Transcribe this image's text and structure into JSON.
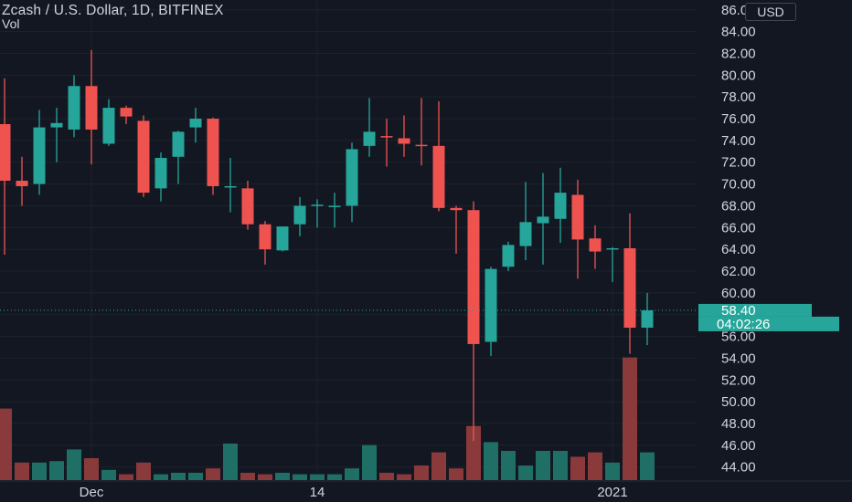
{
  "header": {
    "title": "Zcash / U.S. Dollar, 1D, BITFINEX",
    "volume_label": "Vol"
  },
  "currency_button": "USD",
  "colors": {
    "background": "#131722",
    "up": "#26a69a",
    "down": "#ef5350",
    "vol_up": "#1f6f66",
    "vol_down": "#8b3a3c",
    "grid": "#1e222d",
    "axis_text": "#d1d4dc"
  },
  "chart_data": {
    "type": "candlestick",
    "title": "Zcash / U.S. Dollar, 1D, BITFINEX",
    "ylim": [
      42.8,
      86.4
    ],
    "y_ticks": [
      "44.00",
      "46.00",
      "48.00",
      "50.00",
      "52.00",
      "54.00",
      "56.00",
      "58.00",
      "60.00",
      "62.00",
      "64.00",
      "66.00",
      "68.00",
      "70.00",
      "72.00",
      "74.00",
      "76.00",
      "78.00",
      "80.00",
      "82.00",
      "84.00",
      "86.00"
    ],
    "x_ticks": [
      {
        "label": "Dec",
        "index": 5
      },
      {
        "label": "14",
        "index": 18
      },
      {
        "label": "2021",
        "index": 35
      }
    ],
    "last_price": "58.40",
    "countdown": "04:02:26",
    "grid": true,
    "candles": [
      {
        "o": 75.5,
        "h": 79.7,
        "l": 63.5,
        "c": 70.3
      },
      {
        "o": 70.3,
        "h": 72.5,
        "l": 68.0,
        "c": 69.8
      },
      {
        "o": 70.0,
        "h": 76.8,
        "l": 69.0,
        "c": 75.2
      },
      {
        "o": 75.2,
        "h": 77.0,
        "l": 72.0,
        "c": 75.6
      },
      {
        "o": 75.0,
        "h": 80.0,
        "l": 74.3,
        "c": 79.0
      },
      {
        "o": 79.0,
        "h": 82.3,
        "l": 71.8,
        "c": 75.0
      },
      {
        "o": 73.7,
        "h": 77.8,
        "l": 73.5,
        "c": 77.0
      },
      {
        "o": 77.0,
        "h": 77.2,
        "l": 75.5,
        "c": 76.2
      },
      {
        "o": 75.8,
        "h": 76.3,
        "l": 68.8,
        "c": 69.2
      },
      {
        "o": 69.6,
        "h": 72.9,
        "l": 68.4,
        "c": 72.4
      },
      {
        "o": 72.5,
        "h": 74.9,
        "l": 70.0,
        "c": 74.8
      },
      {
        "o": 75.2,
        "h": 77.0,
        "l": 73.8,
        "c": 76.0
      },
      {
        "o": 76.0,
        "h": 76.1,
        "l": 69.0,
        "c": 69.8
      },
      {
        "o": 69.7,
        "h": 72.4,
        "l": 67.4,
        "c": 69.8
      },
      {
        "o": 69.6,
        "h": 70.3,
        "l": 65.8,
        "c": 66.3
      },
      {
        "o": 66.3,
        "h": 66.6,
        "l": 62.6,
        "c": 64.0
      },
      {
        "o": 63.9,
        "h": 66.1,
        "l": 63.8,
        "c": 66.1
      },
      {
        "o": 66.3,
        "h": 68.8,
        "l": 65.2,
        "c": 68.0
      },
      {
        "o": 68.0,
        "h": 68.6,
        "l": 66.0,
        "c": 68.1
      },
      {
        "o": 68.0,
        "h": 69.2,
        "l": 66.0,
        "c": 68.0
      },
      {
        "o": 68.0,
        "h": 73.8,
        "l": 66.5,
        "c": 73.2
      },
      {
        "o": 73.5,
        "h": 77.9,
        "l": 72.5,
        "c": 74.8
      },
      {
        "o": 74.4,
        "h": 76.0,
        "l": 71.6,
        "c": 74.3
      },
      {
        "o": 74.2,
        "h": 76.3,
        "l": 72.5,
        "c": 73.7
      },
      {
        "o": 73.6,
        "h": 77.9,
        "l": 71.7,
        "c": 73.5
      },
      {
        "o": 73.5,
        "h": 77.6,
        "l": 67.5,
        "c": 67.8
      },
      {
        "o": 67.8,
        "h": 68.0,
        "l": 63.6,
        "c": 67.6
      },
      {
        "o": 67.6,
        "h": 68.4,
        "l": 46.4,
        "c": 55.3
      },
      {
        "o": 55.5,
        "h": 62.4,
        "l": 54.2,
        "c": 62.2
      },
      {
        "o": 62.4,
        "h": 64.7,
        "l": 62.0,
        "c": 64.4
      },
      {
        "o": 64.3,
        "h": 70.2,
        "l": 63.0,
        "c": 66.5
      },
      {
        "o": 66.4,
        "h": 71.0,
        "l": 62.6,
        "c": 67.0
      },
      {
        "o": 66.8,
        "h": 71.5,
        "l": 64.6,
        "c": 69.2
      },
      {
        "o": 69.0,
        "h": 70.4,
        "l": 61.3,
        "c": 64.9
      },
      {
        "o": 65.0,
        "h": 66.2,
        "l": 62.2,
        "c": 63.8
      },
      {
        "o": 64.0,
        "h": 64.2,
        "l": 61.0,
        "c": 64.1
      },
      {
        "o": 64.1,
        "h": 67.3,
        "l": 54.4,
        "c": 56.8
      },
      {
        "o": 56.8,
        "h": 60.0,
        "l": 55.2,
        "c": 58.4
      }
    ],
    "volume": [
      0.49,
      0.12,
      0.12,
      0.13,
      0.21,
      0.15,
      0.07,
      0.04,
      0.12,
      0.04,
      0.05,
      0.05,
      0.08,
      0.25,
      0.05,
      0.04,
      0.05,
      0.04,
      0.04,
      0.04,
      0.08,
      0.24,
      0.05,
      0.04,
      0.1,
      0.19,
      0.08,
      0.37,
      0.26,
      0.2,
      0.1,
      0.2,
      0.2,
      0.16,
      0.19,
      0.12,
      0.84,
      0.19
    ]
  }
}
